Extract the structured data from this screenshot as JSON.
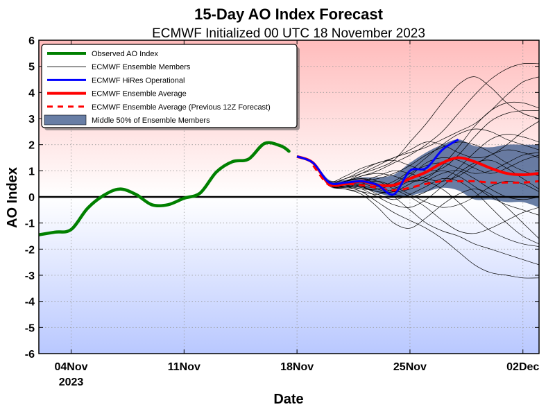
{
  "chart_data": {
    "type": "line",
    "title": "15-Day AO Index Forecast",
    "subtitle": "ECMWF Initialized 00 UTC 18 November 2023",
    "xlabel": "Date",
    "ylabel": "AO Index",
    "ylim": [
      -6,
      6
    ],
    "xlim": [
      "2023-11-02",
      "2023-12-03"
    ],
    "x_ticks": [
      {
        "date": "2023-11-04",
        "label": "04Nov",
        "sublabel": "2023"
      },
      {
        "date": "2023-11-11",
        "label": "11Nov",
        "sublabel": ""
      },
      {
        "date": "2023-11-18",
        "label": "18Nov",
        "sublabel": ""
      },
      {
        "date": "2023-11-25",
        "label": "25Nov",
        "sublabel": ""
      },
      {
        "date": "2023-12-02",
        "label": "02Dec",
        "sublabel": ""
      }
    ],
    "y_ticks": [
      6,
      5,
      4,
      3,
      2,
      1,
      0,
      -1,
      -2,
      -3,
      -4,
      -5,
      -6
    ],
    "grid": true,
    "legend_position": "top-left",
    "legend": [
      {
        "label": "Observed AO Index",
        "style": "thick-green"
      },
      {
        "label": "ECMWF Ensemble Members",
        "style": "thin-black"
      },
      {
        "label": "ECMWF HiRes Operational",
        "style": "blue"
      },
      {
        "label": "ECMWF Ensemble Average",
        "style": "thick-red"
      },
      {
        "label": "ECMWF Ensemble Average (Previous 12Z Forecast)",
        "style": "dashed-red"
      },
      {
        "label": "Middle 50% of Ensemble Members",
        "style": "band"
      }
    ],
    "colors": {
      "observed": "#008000",
      "members": "#000000",
      "hires": "#0000ff",
      "average": "#ff0000",
      "previous": "#ff0000",
      "band": "#3d5a8c"
    },
    "series": [
      {
        "name": "Observed AO Index",
        "x": [
          "2023-11-02",
          "2023-11-03",
          "2023-11-04",
          "2023-11-05",
          "2023-11-06",
          "2023-11-07",
          "2023-11-08",
          "2023-11-09",
          "2023-11-10",
          "2023-11-11",
          "2023-11-12",
          "2023-11-13",
          "2023-11-14",
          "2023-11-15",
          "2023-11-16",
          "2023-11-17",
          "2023-11-17.5"
        ],
        "values": [
          -1.45,
          -1.35,
          -1.25,
          -0.45,
          0.05,
          0.3,
          0.1,
          -0.3,
          -0.3,
          -0.05,
          0.15,
          0.95,
          1.35,
          1.45,
          2.05,
          1.95,
          1.75
        ]
      },
      {
        "name": "ECMWF HiRes Operational",
        "x": [
          "2023-11-18",
          "2023-11-19",
          "2023-11-20",
          "2023-11-21",
          "2023-11-22",
          "2023-11-23",
          "2023-11-24",
          "2023-11-25",
          "2023-11-26",
          "2023-11-27",
          "2023-11-28"
        ],
        "values": [
          1.55,
          1.3,
          0.55,
          0.55,
          0.6,
          0.45,
          0.1,
          1.0,
          1.1,
          1.8,
          2.2
        ]
      },
      {
        "name": "ECMWF Ensemble Average",
        "x": [
          "2023-11-18",
          "2023-11-19",
          "2023-11-20",
          "2023-11-21",
          "2023-11-22",
          "2023-11-23",
          "2023-11-24",
          "2023-11-25",
          "2023-11-26",
          "2023-11-27",
          "2023-11-28",
          "2023-11-29",
          "2023-11-30",
          "2023-12-01",
          "2023-12-02",
          "2023-12-03"
        ],
        "values": [
          1.55,
          1.3,
          0.5,
          0.5,
          0.6,
          0.45,
          0.45,
          0.7,
          0.95,
          1.3,
          1.5,
          1.35,
          1.1,
          0.9,
          0.85,
          0.9
        ]
      },
      {
        "name": "ECMWF Ensemble Average (Previous 12Z Forecast)",
        "x": [
          "2023-11-19",
          "2023-11-20",
          "2023-11-21",
          "2023-11-22",
          "2023-11-23",
          "2023-11-24",
          "2023-11-25",
          "2023-11-26",
          "2023-11-27",
          "2023-11-28",
          "2023-11-29",
          "2023-11-30",
          "2023-12-01",
          "2023-12-02",
          "2023-12-03"
        ],
        "values": [
          1.2,
          0.45,
          0.5,
          0.45,
          0.35,
          0.25,
          0.35,
          0.5,
          0.6,
          0.6,
          0.6,
          0.55,
          0.55,
          0.55,
          0.6
        ]
      },
      {
        "name": "Middle 50% of Ensemble Members",
        "x": [
          "2023-11-18",
          "2023-11-19",
          "2023-11-20",
          "2023-11-21",
          "2023-11-22",
          "2023-11-23",
          "2023-11-24",
          "2023-11-25",
          "2023-11-26",
          "2023-11-27",
          "2023-11-28",
          "2023-11-29",
          "2023-11-30",
          "2023-12-01",
          "2023-12-02",
          "2023-12-03"
        ],
        "upper": [
          1.6,
          1.35,
          0.65,
          0.65,
          0.75,
          0.75,
          0.85,
          1.3,
          1.7,
          2.0,
          2.2,
          1.95,
          1.9,
          2.0,
          2.0,
          2.0
        ],
        "lower": [
          1.5,
          1.25,
          0.4,
          0.35,
          0.35,
          0.15,
          0.0,
          0.05,
          0.2,
          0.35,
          0.25,
          -0.1,
          -0.1,
          -0.2,
          -0.2,
          -0.4
        ]
      },
      {
        "name": "ECMWF Ensemble Members",
        "x": [
          "2023-11-18",
          "2023-11-19",
          "2023-11-20",
          "2023-11-21",
          "2023-11-22",
          "2023-11-23",
          "2023-11-24",
          "2023-11-25",
          "2023-11-26",
          "2023-11-27",
          "2023-11-28",
          "2023-11-29",
          "2023-11-30",
          "2023-12-01",
          "2023-12-02",
          "2023-12-03"
        ],
        "members": [
          [
            1.55,
            1.3,
            0.6,
            0.7,
            0.9,
            1.1,
            1.4,
            2.1,
            2.8,
            3.6,
            4.3,
            4.6,
            4.2,
            3.6,
            3.2,
            3.0
          ],
          [
            1.55,
            1.3,
            0.5,
            0.4,
            0.2,
            -0.2,
            -0.6,
            -0.9,
            -1.2,
            -1.6,
            -2.1,
            -2.6,
            -2.9,
            -3.0,
            -3.1,
            -3.1
          ],
          [
            1.55,
            1.3,
            0.55,
            0.6,
            0.8,
            1.0,
            1.3,
            1.6,
            2.0,
            2.5,
            3.2,
            3.9,
            4.5,
            4.9,
            5.1,
            5.1
          ],
          [
            1.55,
            1.3,
            0.45,
            0.3,
            0.1,
            -0.4,
            -1.0,
            -1.2,
            -0.8,
            -0.3,
            0.1,
            0.3,
            0.1,
            -0.4,
            -1.0,
            -1.6
          ],
          [
            1.55,
            1.3,
            0.5,
            0.5,
            0.5,
            0.4,
            0.6,
            1.0,
            1.5,
            2.0,
            2.4,
            2.6,
            2.5,
            2.2,
            2.0,
            1.8
          ],
          [
            1.55,
            1.3,
            0.55,
            0.6,
            0.7,
            0.6,
            0.3,
            0.0,
            -0.4,
            -0.9,
            -1.3,
            -1.4,
            -1.2,
            -0.9,
            -0.6,
            -0.4
          ],
          [
            1.55,
            1.3,
            0.5,
            0.6,
            0.9,
            1.2,
            1.5,
            1.7,
            1.9,
            2.2,
            2.5,
            2.8,
            3.3,
            3.9,
            4.4,
            4.6
          ],
          [
            1.55,
            1.3,
            0.45,
            0.4,
            0.4,
            0.3,
            0.0,
            -0.5,
            -1.0,
            -1.3,
            -1.5,
            -1.8,
            -2.0,
            -2.2,
            -2.4,
            -2.6
          ],
          [
            1.55,
            1.3,
            0.55,
            0.5,
            0.6,
            0.8,
            1.0,
            0.9,
            0.7,
            0.6,
            0.8,
            1.2,
            1.6,
            1.8,
            1.7,
            1.5
          ],
          [
            1.55,
            1.3,
            0.5,
            0.5,
            0.4,
            0.2,
            0.2,
            0.5,
            0.8,
            1.0,
            0.8,
            0.4,
            0.0,
            -0.3,
            -0.5,
            -0.7
          ],
          [
            1.55,
            1.3,
            0.55,
            0.7,
            1.0,
            1.3,
            1.4,
            1.2,
            1.0,
            1.1,
            1.6,
            2.3,
            2.9,
            3.2,
            3.3,
            3.3
          ],
          [
            1.55,
            1.3,
            0.45,
            0.3,
            0.2,
            0.1,
            0.3,
            0.6,
            0.6,
            0.3,
            -0.2,
            -0.8,
            -1.3,
            -1.6,
            -1.8,
            -1.9
          ],
          [
            1.55,
            1.3,
            0.5,
            0.6,
            0.7,
            0.5,
            0.4,
            0.8,
            1.3,
            1.5,
            1.4,
            1.1,
            0.9,
            1.1,
            1.4,
            1.6
          ],
          [
            1.55,
            1.3,
            0.5,
            0.4,
            0.3,
            0.0,
            -0.3,
            -0.4,
            -0.1,
            0.4,
            0.9,
            1.3,
            1.4,
            1.1,
            0.7,
            0.3
          ],
          [
            1.55,
            1.3,
            0.6,
            0.8,
            1.1,
            1.3,
            1.5,
            1.8,
            2.1,
            2.0,
            1.7,
            1.5,
            1.6,
            2.0,
            2.5,
            2.9
          ],
          [
            1.55,
            1.3,
            0.45,
            0.4,
            0.5,
            0.6,
            0.4,
            0.1,
            -0.2,
            -0.4,
            -0.3,
            0.0,
            0.4,
            0.6,
            0.5,
            0.2
          ],
          [
            1.55,
            1.3,
            0.5,
            0.55,
            0.6,
            0.7,
            0.9,
            1.2,
            1.6,
            1.9,
            2.1,
            2.0,
            1.7,
            1.3,
            1.0,
            0.8
          ],
          [
            1.55,
            1.3,
            0.5,
            0.45,
            0.35,
            0.2,
            0.1,
            0.0,
            0.2,
            0.6,
            1.1,
            1.7,
            2.2,
            2.4,
            2.3,
            2.1
          ],
          [
            1.55,
            1.3,
            0.55,
            0.5,
            0.4,
            0.1,
            -0.1,
            0.1,
            0.4,
            0.7,
            0.6,
            0.2,
            -0.4,
            -1.0,
            -1.5,
            -1.8
          ],
          [
            1.55,
            1.3,
            0.5,
            0.6,
            0.8,
            0.9,
            0.8,
            0.6,
            0.7,
            1.2,
            1.9,
            2.7,
            3.3,
            3.6,
            3.6,
            3.4
          ],
          [
            1.55,
            1.3,
            0.45,
            0.35,
            0.3,
            0.3,
            0.5,
            0.9,
            1.2,
            1.3,
            1.1,
            0.9,
            1.0,
            1.3,
            1.6,
            1.7
          ],
          [
            1.55,
            1.3,
            0.5,
            0.5,
            0.55,
            0.4,
            0.2,
            0.3,
            0.6,
            0.9,
            1.0,
            0.7,
            0.3,
            0.0,
            -0.1,
            0.0
          ]
        ]
      }
    ]
  }
}
